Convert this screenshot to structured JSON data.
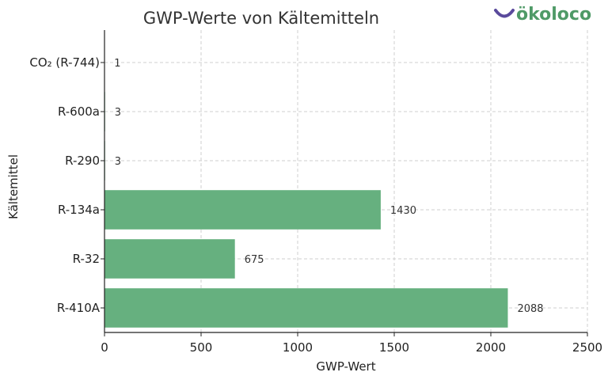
{
  "chart_data": {
    "type": "bar",
    "orientation": "horizontal",
    "title": "GWP-Werte von Kältemitteln",
    "xlabel": "GWP-Wert",
    "ylabel": "Kältemittel",
    "categories": [
      "CO₂ (R-744)",
      "R-600a",
      "R-290",
      "R-134a",
      "R-32",
      "R-410A"
    ],
    "values": [
      1,
      3,
      3,
      1430,
      675,
      2088
    ],
    "xlim": [
      0,
      2500
    ],
    "xticks": [
      "0",
      "500",
      "1000",
      "1500",
      "2000",
      "2500"
    ],
    "grid": true,
    "bar_color": "#66b07f"
  },
  "brand": {
    "logo_text": "ökoloco",
    "logo_color": "#4f9a67",
    "smile_color": "#5a4a9c"
  }
}
